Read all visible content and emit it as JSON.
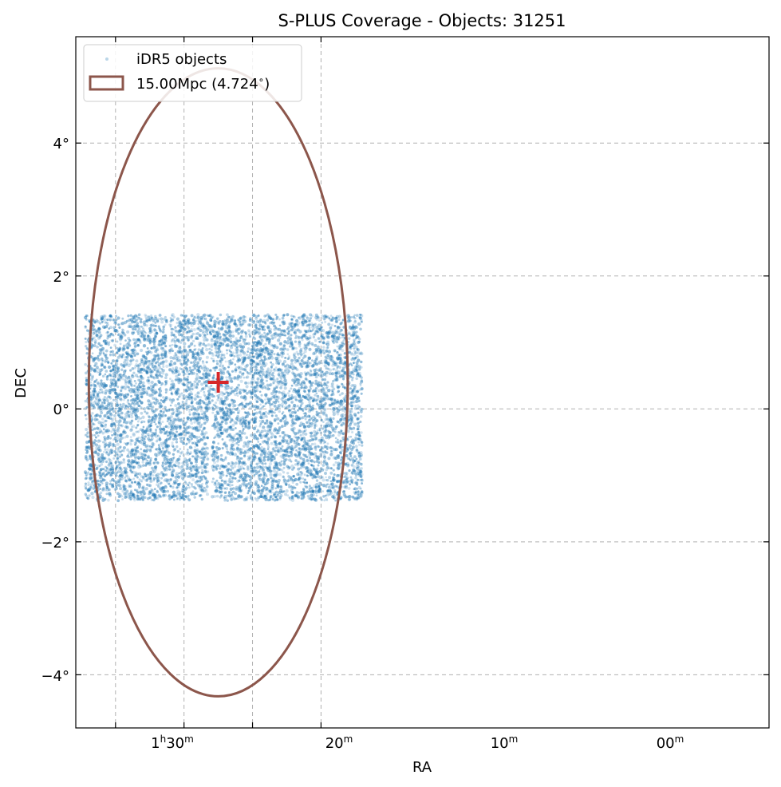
{
  "chart_data": {
    "type": "scatter",
    "title": "S-PLUS Coverage - Objects: 31251",
    "xlabel": "RA",
    "ylabel": "DEC",
    "x_units": "RA (hours, minutes); axis increases to the left",
    "xlim_ra_minutes": [
      95.8,
      -5.4
    ],
    "ylim_deg": [
      -4.8,
      5.6
    ],
    "grid": true,
    "legend_position": "top-left",
    "x_ticks": [
      {
        "ra_minutes": 90,
        "hour": "1",
        "hour_sup": "h",
        "minute": "30",
        "minute_sup": "m"
      },
      {
        "ra_minutes": 80,
        "hour": "",
        "hour_sup": "",
        "minute": "20",
        "minute_sup": "m"
      },
      {
        "ra_minutes": 70,
        "hour": "",
        "hour_sup": "",
        "minute": "10",
        "minute_sup": "m"
      },
      {
        "ra_minutes": 60,
        "hour": "",
        "hour_sup": "",
        "minute": "00",
        "minute_sup": "m"
      }
    ],
    "y_ticks": [
      {
        "dec": 4,
        "label": "4°"
      },
      {
        "dec": 2,
        "label": "2°"
      },
      {
        "dec": 0,
        "label": "0°"
      },
      {
        "dec": -2,
        "label": "−2°"
      },
      {
        "dec": -4,
        "label": "−4°"
      }
    ],
    "series": [
      {
        "name": "iDR5 objects",
        "kind": "points",
        "count": 31251,
        "color": "#1f77b4",
        "footprint_blocks_ra_minutes_dec_deg": [
          {
            "ra": [
              94.4,
              82.5
            ],
            "dec": [
              0.0,
              1.42
            ]
          },
          {
            "ra": [
              82.1,
              65.1
            ],
            "dec": [
              0.0,
              1.42
            ]
          },
          {
            "ra": [
              94.4,
              76.5
            ],
            "dec": [
              -1.38,
              0.0
            ]
          },
          {
            "ra": [
              75.9,
              64.9
            ],
            "dec": [
              -1.38,
              0.0
            ]
          },
          {
            "ra": [
              64.9,
              54.0
            ],
            "dec": [
              -1.38,
              1.42
            ]
          }
        ]
      },
      {
        "name": "15.00Mpc (4.724$^\\circ$)",
        "legend_label": "15.00Mpc (4.724$^\\circ$)",
        "kind": "circle",
        "center_ra_minutes": 75.0,
        "center_dec_deg": 0.4,
        "radius_deg": 4.724,
        "color": "#8c564b"
      },
      {
        "kind": "center-marker",
        "ra_minutes": 75.0,
        "dec_deg": 0.4,
        "color": "#d62728"
      }
    ]
  }
}
